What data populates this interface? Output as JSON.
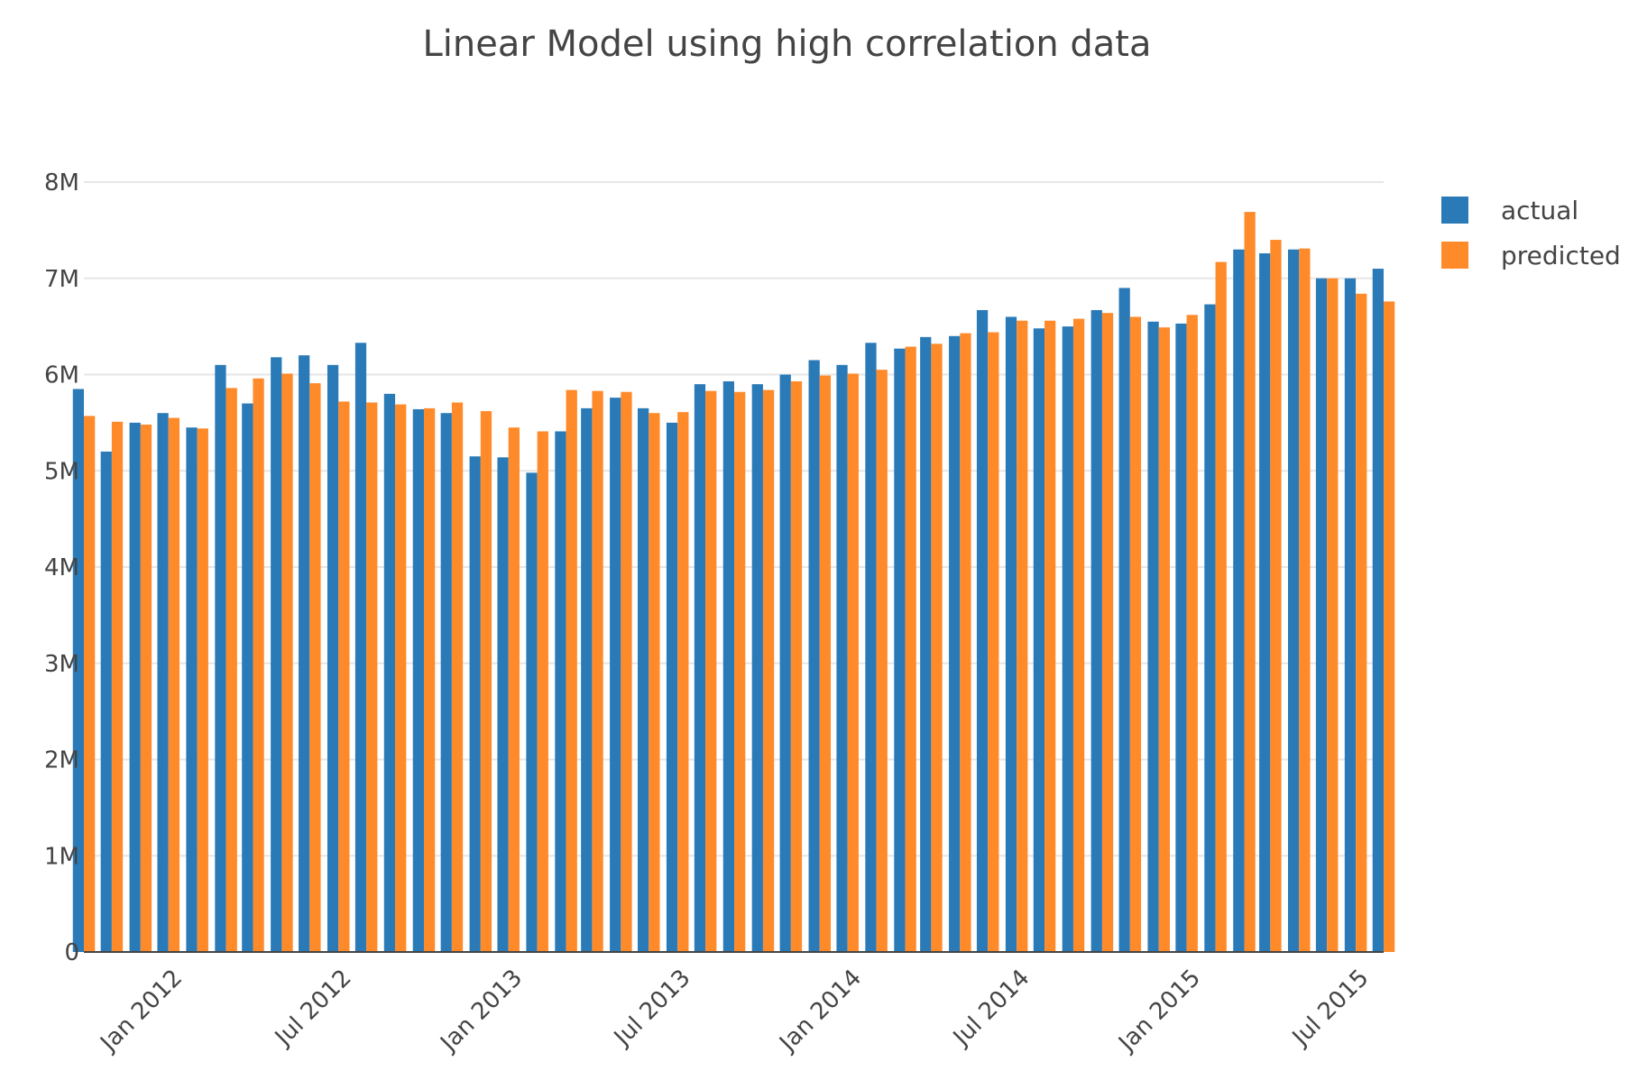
{
  "colors": {
    "actual": "#2a7ab8",
    "predicted": "#ff8a2a",
    "grid": "#e6e6e6",
    "axis": "#444444"
  },
  "chart_data": {
    "type": "bar",
    "title": "Linear Model using high correlation data",
    "xlabel": "",
    "ylabel": "",
    "ylim": [
      0,
      8000000
    ],
    "grid": true,
    "legend_position": "top-right",
    "x_range": [
      "2011-09-16",
      "2015-07-16"
    ],
    "y_ticks": [
      {
        "value": 0,
        "label": "0"
      },
      {
        "value": 1000000,
        "label": "1M"
      },
      {
        "value": 2000000,
        "label": "2M"
      },
      {
        "value": 3000000,
        "label": "3M"
      },
      {
        "value": 4000000,
        "label": "4M"
      },
      {
        "value": 5000000,
        "label": "5M"
      },
      {
        "value": 6000000,
        "label": "6M"
      },
      {
        "value": 7000000,
        "label": "7M"
      },
      {
        "value": 8000000,
        "label": "8M"
      }
    ],
    "x_ticks": [
      {
        "date": "2012-01-01",
        "label": "Jan 2012"
      },
      {
        "date": "2012-07-01",
        "label": "Jul 2012"
      },
      {
        "date": "2013-01-01",
        "label": "Jan 2013"
      },
      {
        "date": "2013-07-01",
        "label": "Jul 2013"
      },
      {
        "date": "2014-01-01",
        "label": "Jan 2014"
      },
      {
        "date": "2014-07-01",
        "label": "Jul 2014"
      },
      {
        "date": "2015-01-01",
        "label": "Jan 2015"
      },
      {
        "date": "2015-07-01",
        "label": "Jul 2015"
      }
    ],
    "x": [
      "2011-09",
      "2011-10",
      "2011-11",
      "2011-12",
      "2012-01",
      "2012-02",
      "2012-03",
      "2012-04",
      "2012-05",
      "2012-06",
      "2012-07",
      "2012-08",
      "2012-09",
      "2012-10",
      "2012-11",
      "2012-12",
      "2013-01",
      "2013-02",
      "2013-03",
      "2013-04",
      "2013-05",
      "2013-06",
      "2013-07",
      "2013-08",
      "2013-09",
      "2013-10",
      "2013-11",
      "2013-12",
      "2014-01",
      "2014-02",
      "2014-03",
      "2014-04",
      "2014-05",
      "2014-06",
      "2014-07",
      "2014-08",
      "2014-09",
      "2014-10",
      "2014-11",
      "2014-12",
      "2015-01",
      "2015-02",
      "2015-03",
      "2015-04",
      "2015-05",
      "2015-06",
      "2015-07"
    ],
    "series": [
      {
        "name": "actual",
        "values": [
          5850000,
          5200000,
          5500000,
          5600000,
          5450000,
          6100000,
          5700000,
          6180000,
          6200000,
          6100000,
          6330000,
          5800000,
          5640000,
          5600000,
          5150000,
          5140000,
          4980000,
          5410000,
          5650000,
          5760000,
          5650000,
          5500000,
          5900000,
          5930000,
          5900000,
          6000000,
          6150000,
          6100000,
          6330000,
          6270000,
          6390000,
          6400000,
          6670000,
          6600000,
          6480000,
          6500000,
          6670000,
          6900000,
          6550000,
          6530000,
          6730000,
          7300000,
          7260000,
          7300000,
          7000000,
          7000000,
          7100000
        ]
      },
      {
        "name": "predicted",
        "values": [
          5570000,
          5510000,
          5480000,
          5550000,
          5440000,
          5860000,
          5960000,
          6010000,
          5910000,
          5720000,
          5710000,
          5690000,
          5650000,
          5710000,
          5620000,
          5450000,
          5410000,
          5840000,
          5830000,
          5820000,
          5600000,
          5610000,
          5830000,
          5820000,
          5840000,
          5930000,
          5990000,
          6010000,
          6050000,
          6290000,
          6320000,
          6430000,
          6440000,
          6560000,
          6560000,
          6580000,
          6640000,
          6600000,
          6490000,
          6620000,
          7170000,
          7690000,
          7400000,
          7310000,
          7000000,
          6840000,
          6760000
        ]
      }
    ]
  }
}
